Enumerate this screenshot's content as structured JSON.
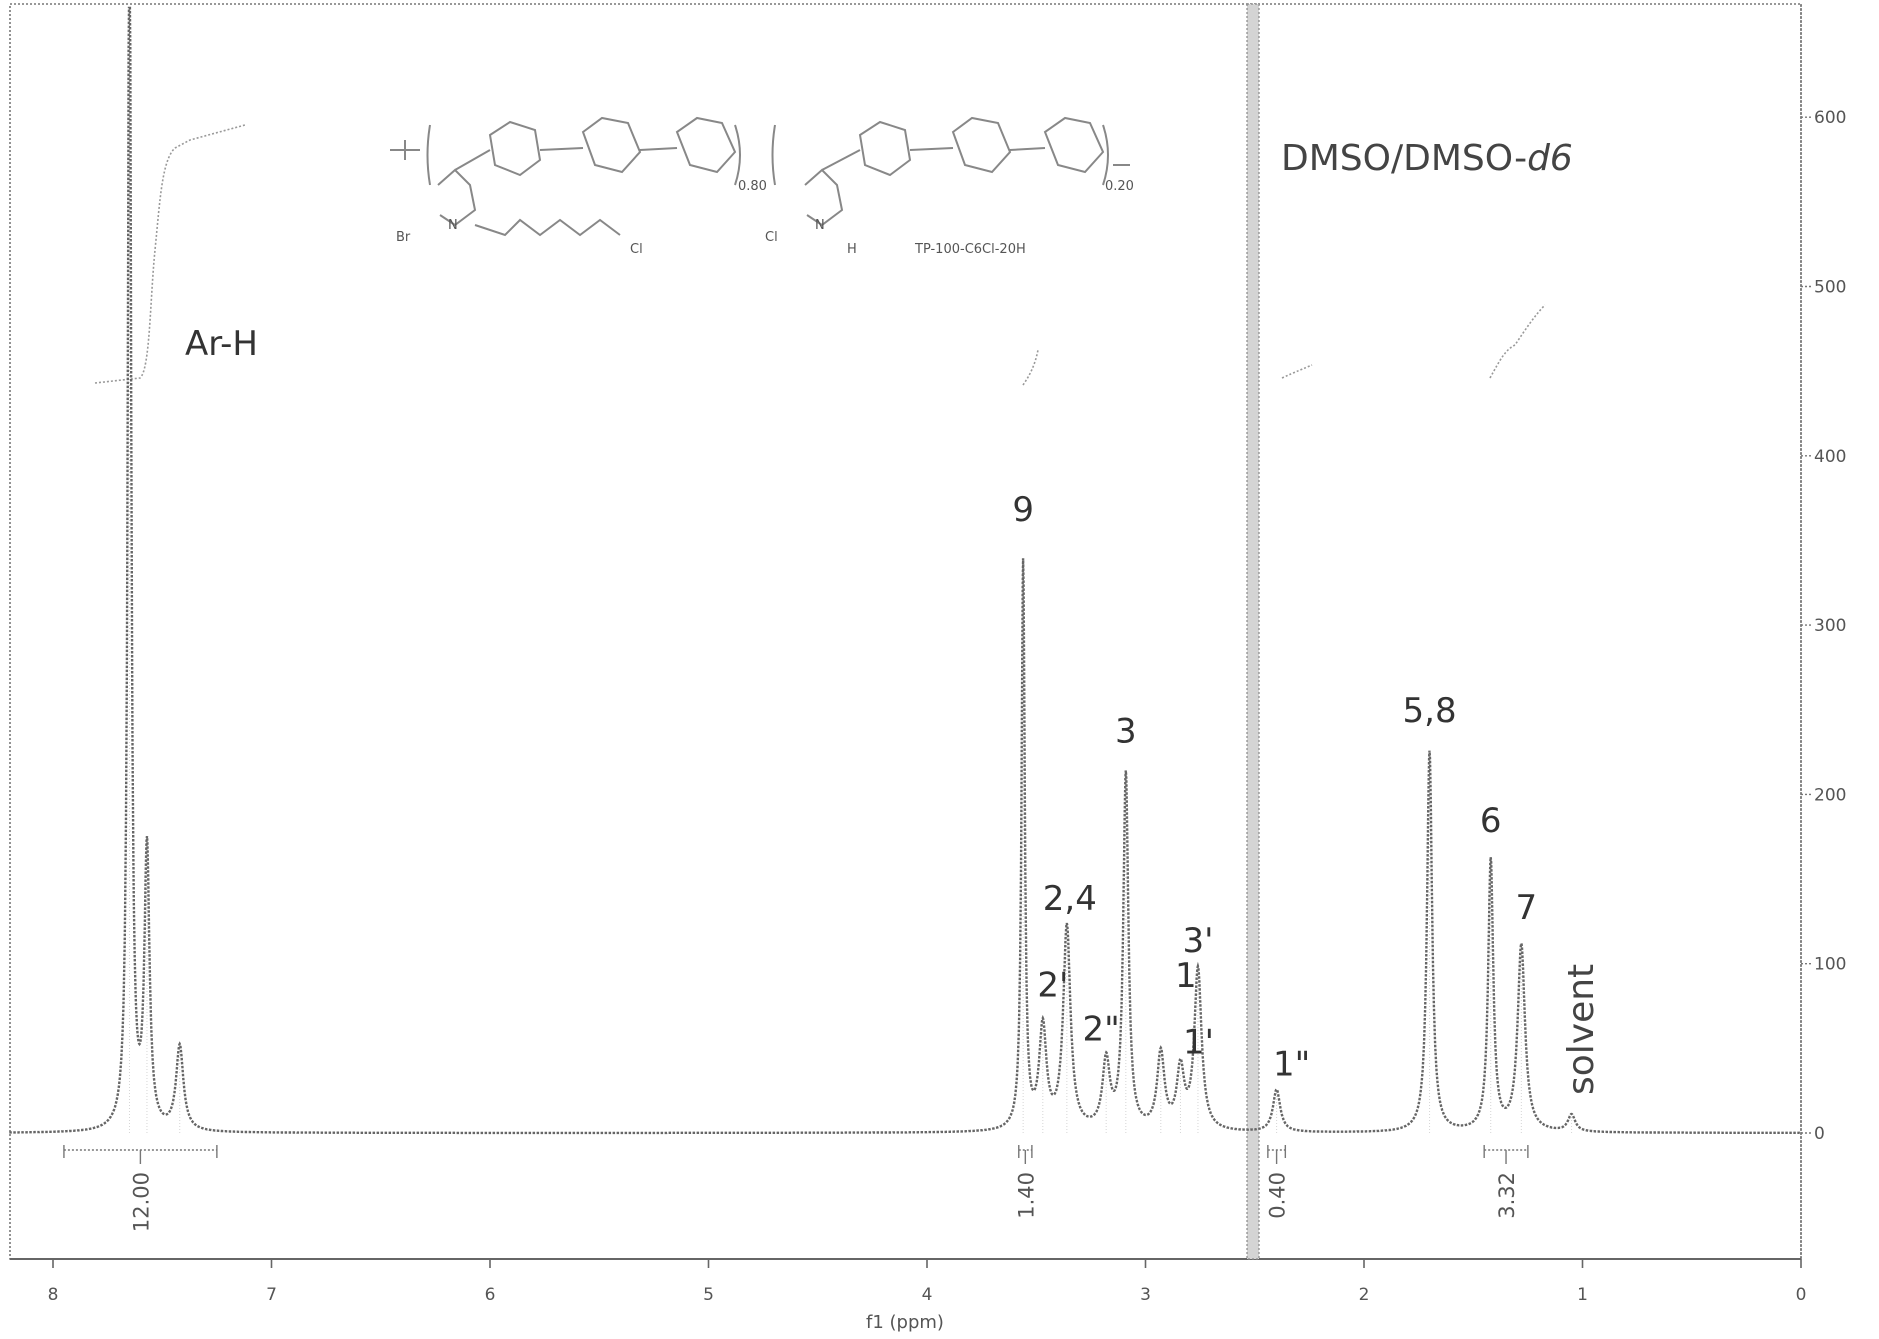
{
  "chart_data": {
    "type": "line",
    "title": "",
    "xlabel": "f1 (ppm)",
    "ylabel": "",
    "xlim": [
      8.2,
      0
    ],
    "ylim": [
      -80,
      660
    ],
    "x_reversed": true,
    "x_ticks": [
      8,
      7,
      6,
      5,
      4,
      3,
      2,
      1,
      0
    ],
    "y_ticks": [
      0,
      100,
      200,
      300,
      400,
      500,
      600
    ],
    "grid": false,
    "solvent_text": "DMSO/DMSO-",
    "solvent_text_italic": "d6",
    "group_label": "Ar-H",
    "structure_label": "TP-100-C6Cl-20H",
    "structure_subscripts": [
      "0.80",
      "0.20"
    ],
    "structure_atoms": [
      "Br",
      "N",
      "Cl",
      "Cl",
      "N",
      "H"
    ],
    "solvent_peak_label": "solvent",
    "peaks": [
      {
        "ppm": 7.65,
        "height": 760
      },
      {
        "ppm": 7.57,
        "height": 165
      },
      {
        "ppm": 7.42,
        "height": 50
      },
      {
        "ppm": 3.56,
        "height": 335,
        "label": "9"
      },
      {
        "ppm": 3.47,
        "height": 60,
        "label": "2'"
      },
      {
        "ppm": 3.36,
        "height": 120,
        "label": "2,4"
      },
      {
        "ppm": 3.18,
        "height": 40,
        "label": "2\""
      },
      {
        "ppm": 3.09,
        "height": 210,
        "label": "3"
      },
      {
        "ppm": 2.93,
        "height": 45,
        "label": "1"
      },
      {
        "ppm": 2.84,
        "height": 35,
        "label": "1'"
      },
      {
        "ppm": 2.76,
        "height": 95,
        "label": "3'"
      },
      {
        "ppm": 2.4,
        "height": 25,
        "label": "1\""
      },
      {
        "ppm": 1.7,
        "height": 225,
        "label": "5,8"
      },
      {
        "ppm": 1.42,
        "height": 160,
        "label": "6"
      },
      {
        "ppm": 1.28,
        "height": 110,
        "label": "7"
      },
      {
        "ppm": 1.05,
        "height": 10
      }
    ],
    "integrals": [
      {
        "from": 7.95,
        "to": 7.25,
        "value": "12.00"
      },
      {
        "from": 3.58,
        "to": 3.52,
        "value": "1.40"
      },
      {
        "from": 2.44,
        "to": 2.36,
        "value": "0.40"
      },
      {
        "from": 1.45,
        "to": 1.25,
        "value": "3.32"
      }
    ]
  }
}
